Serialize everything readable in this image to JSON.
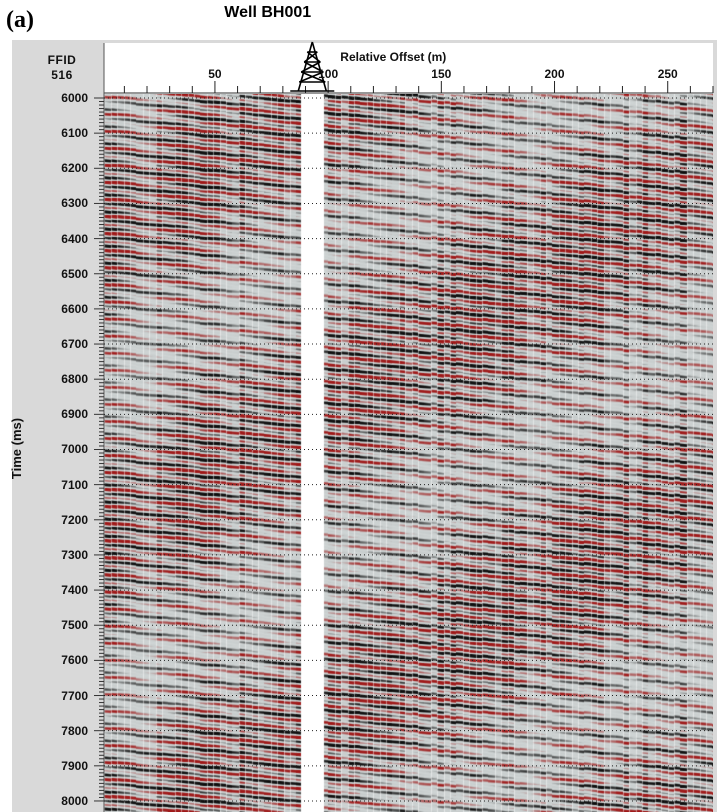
{
  "panel_label": "(a)",
  "well_name": "Well BH001",
  "ffid": {
    "label": "FFID",
    "value": "516"
  },
  "colors": {
    "frame": "#d9d9d9",
    "peak": "#b51f1f",
    "trough": "#111111",
    "background": "#c7cccc",
    "gap": "#ffffff"
  },
  "chart_data": {
    "type": "heatmap",
    "xlabel": "Relative Offset (m)",
    "ylabel": "Time (ms)",
    "x_ticks": [
      50,
      100,
      150,
      200,
      250
    ],
    "x_range": [
      1,
      270
    ],
    "y_ticks": [
      6000,
      6100,
      6200,
      6300,
      6400,
      6500,
      6600,
      6700,
      6800,
      6900,
      7000,
      7100,
      7200,
      7300,
      7400,
      7500,
      7600,
      7700,
      7800,
      7900,
      8000
    ],
    "y_tick_labels": [
      "6000",
      "6100",
      "6200",
      "6300",
      "6400",
      "6500",
      "6600",
      "6700",
      "6800",
      "6900",
      "7000",
      "7100",
      "7200",
      "7300",
      "7400",
      "7500",
      "7600",
      "7700",
      "7800",
      "7900",
      "8000"
    ],
    "y_range": [
      6000,
      8020
    ],
    "y_reversed": true,
    "well_offset": 93,
    "gap_offsets": [
      88,
      98
    ],
    "gridlines": "dotted horizontal at each 100 ms",
    "colormap": "red = positive amplitude, black = negative amplitude",
    "event_dip_ms_per_m": 0.6
  }
}
